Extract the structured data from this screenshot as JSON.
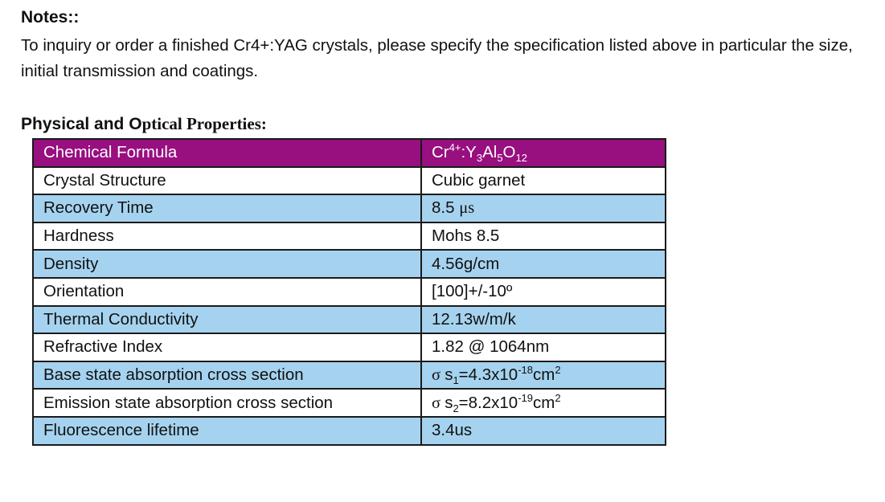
{
  "notes": {
    "title": "Notes::",
    "body": "To inquiry or order a finished Cr4+:YAG crystals, please specify the specification listed above in particular the size, initial transmission and coatings."
  },
  "section": {
    "title_part1": "Physical and O",
    "title_part2": "ptical Properties:"
  },
  "table": {
    "rows": [
      {
        "property": "Chemical Formula",
        "value": {
          "el1": "Cr",
          "charge": "4+",
          "colon_y": ":Y",
          "y_sub": "3",
          "al": "Al",
          "al_sub": "5",
          "o": "O",
          "o_sub": "12"
        },
        "style": "head"
      },
      {
        "property": "Crystal Structure",
        "value": "Cubic garnet",
        "style": "white"
      },
      {
        "property": "Recovery Time",
        "value": {
          "num": "8.5 ",
          "unit_mu": "μ",
          "unit_s": "s"
        },
        "style": "blue"
      },
      {
        "property": "Hardness",
        "value": "Mohs 8.5",
        "style": "white"
      },
      {
        "property": "Density",
        "value": "4.56g/cm",
        "style": "blue"
      },
      {
        "property": "Orientation",
        "value": "[100]+/-10º",
        "style": "white"
      },
      {
        "property": "Thermal Conductivity",
        "value": "12.13w/m/k",
        "style": "blue"
      },
      {
        "property": "Refractive Index",
        "value": "1.82 @ 1064nm",
        "style": "white"
      },
      {
        "property": "Base state absorption cross section",
        "value": {
          "sigma": "σ ",
          "s": "s",
          "s_sub": "1",
          "mid": "=4.3x10",
          "exp": "-18",
          "unit": "cm",
          "unit_exp": "2"
        },
        "style": "blue"
      },
      {
        "property": "Emission state absorption cross section",
        "value": {
          "sigma": "σ ",
          "s": "s",
          "s_sub": "2",
          "mid": "=8.2x10",
          "exp": "-19",
          "unit": "cm",
          "unit_exp": "2"
        },
        "style": "white"
      },
      {
        "property": "Fluorescence lifetime",
        "value": "3.4us",
        "style": "blue"
      }
    ]
  },
  "colors": {
    "header_bg": "#980f80",
    "row_blue": "#a5d3ef",
    "row_white": "#ffffff",
    "border": "#1a1a1a"
  }
}
